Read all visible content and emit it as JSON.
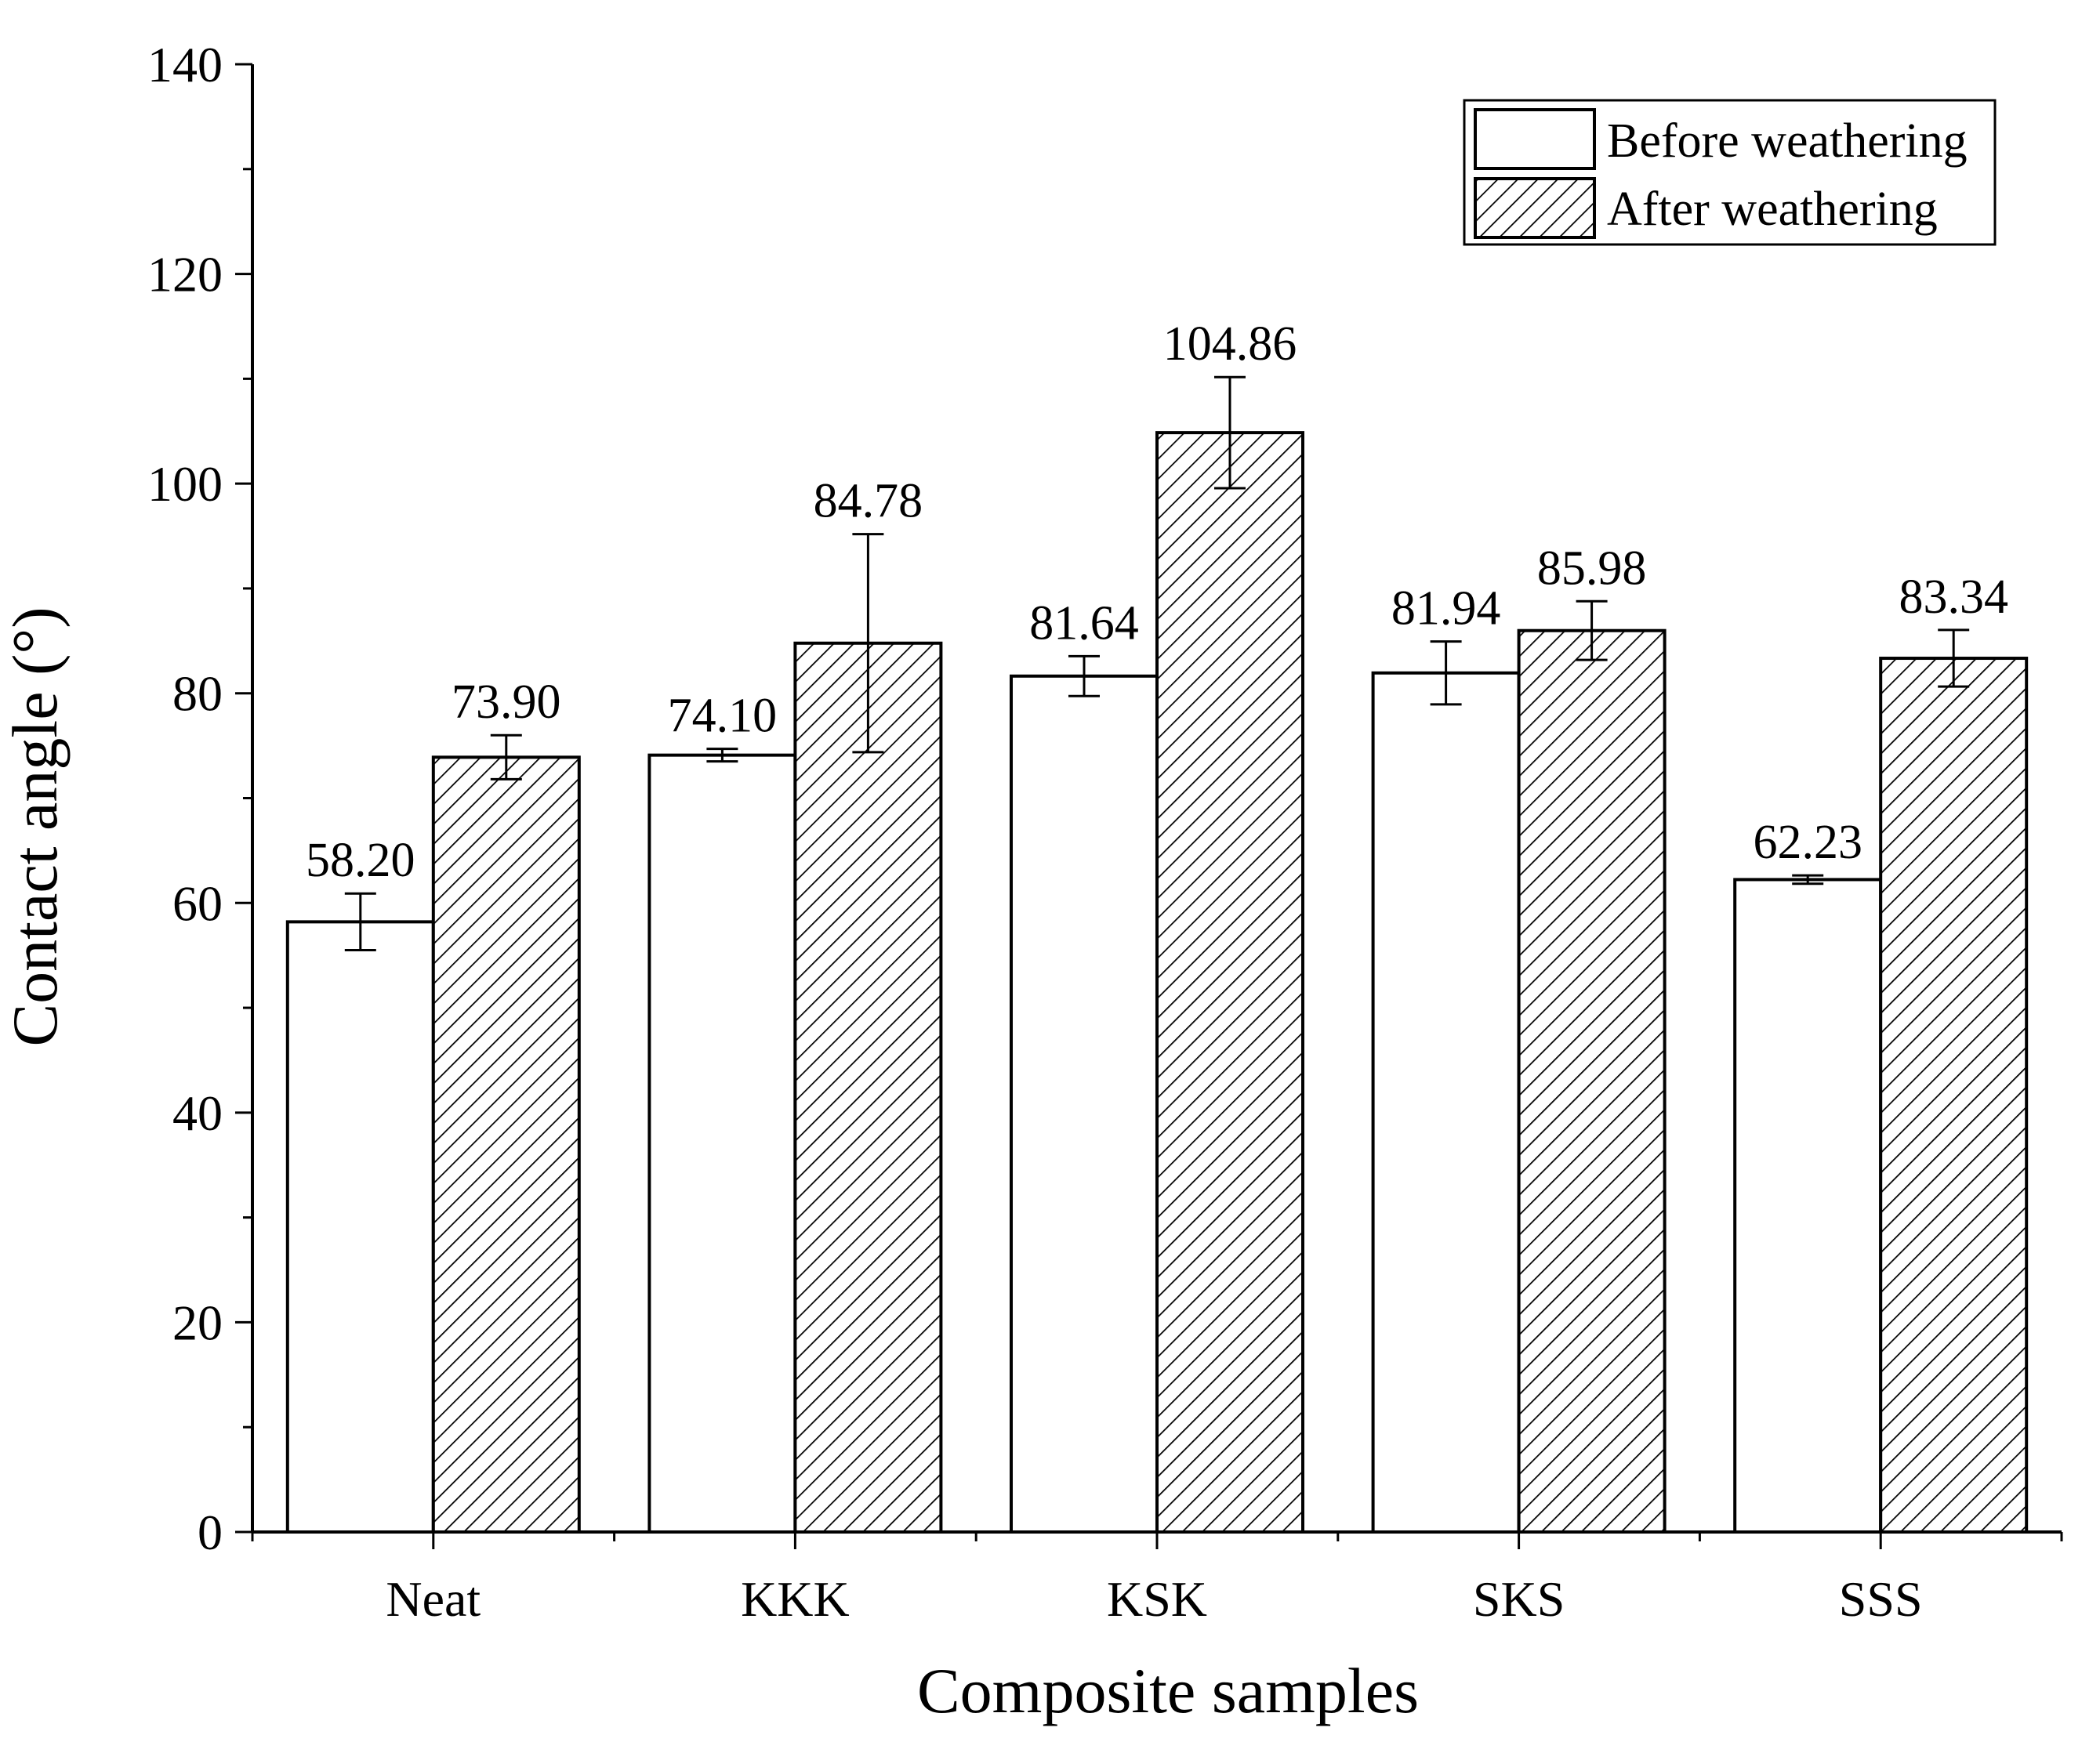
{
  "chart_data": {
    "type": "bar",
    "title": "",
    "xlabel": "Composite samples",
    "ylabel": "Contact angle (°)",
    "ylim": [
      0,
      140
    ],
    "yticks": [
      0,
      20,
      40,
      60,
      80,
      100,
      120,
      140
    ],
    "categories": [
      "Neat",
      "KKK",
      "KSK",
      "SKS",
      "SSS"
    ],
    "legend_position": "top-right",
    "series": [
      {
        "name": "Before weathering",
        "fill": "none",
        "values": [
          58.2,
          74.1,
          81.64,
          81.94,
          62.23
        ],
        "value_labels": [
          "58.20",
          "74.10",
          "81.64",
          "81.94",
          "62.23"
        ],
        "errors": [
          2.7,
          0.6,
          1.9,
          3.0,
          0.4
        ]
      },
      {
        "name": "After weathering",
        "fill": "hatched",
        "values": [
          73.9,
          84.78,
          104.86,
          85.98,
          83.34
        ],
        "value_labels": [
          "73.90",
          "84.78",
          "104.86",
          "85.98",
          "83.34"
        ],
        "errors": [
          2.1,
          10.4,
          5.3,
          2.8,
          2.7
        ]
      }
    ]
  },
  "colors": {
    "axis": "#000000",
    "bar_stroke": "#000000",
    "hatch": "#000000",
    "background": "#ffffff"
  }
}
